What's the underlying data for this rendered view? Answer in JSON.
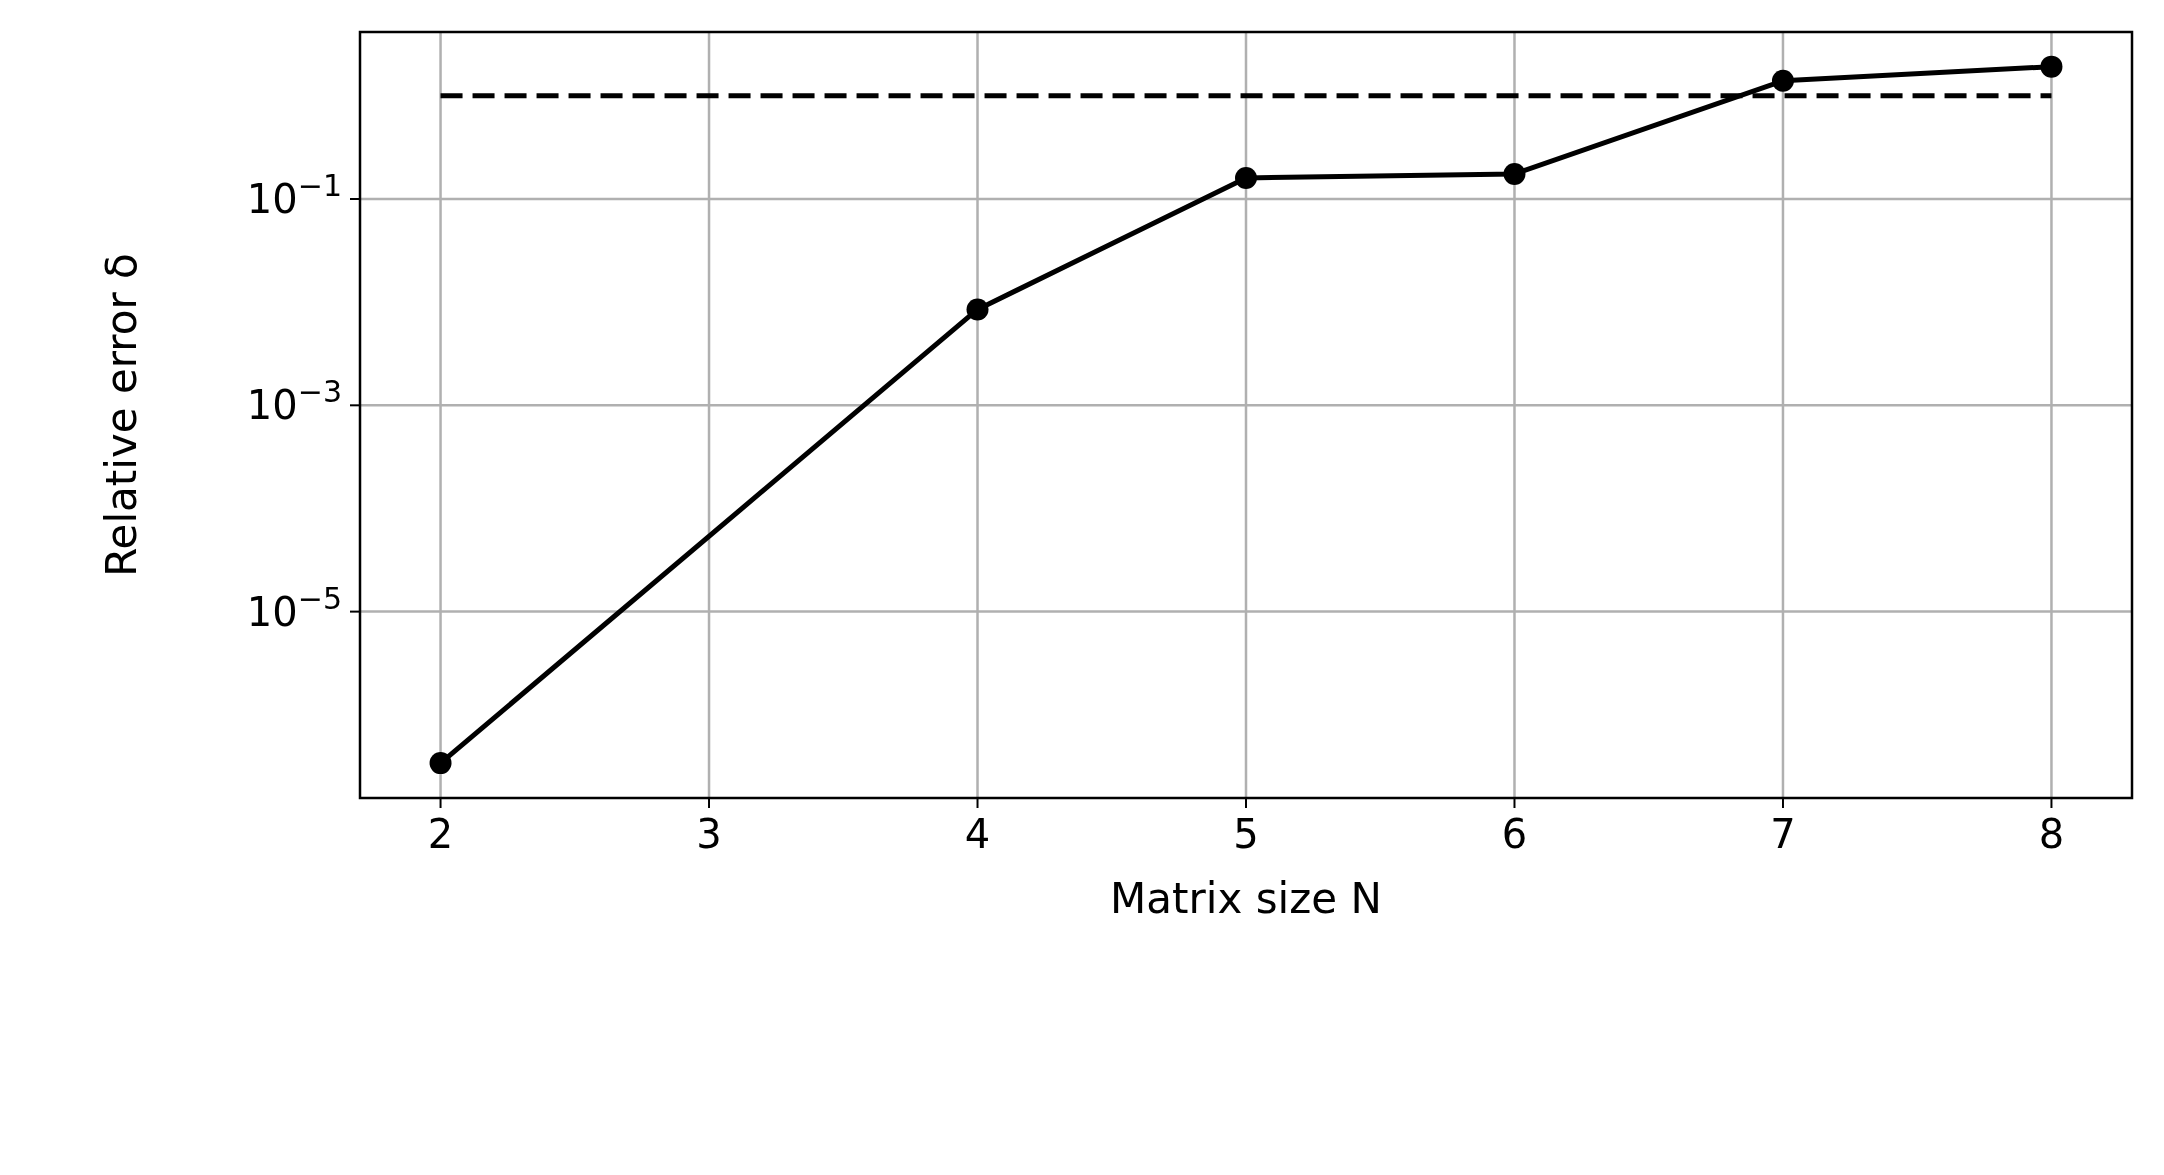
{
  "chart_data": {
    "type": "line",
    "xlabel": "Matrix size N",
    "ylabel": "Relative error δ",
    "log": "y",
    "grid": true,
    "marker": "circle",
    "line_style": "solid",
    "xlim": [
      1.7,
      8.3
    ],
    "xticks": [
      2,
      3,
      4,
      5,
      6,
      7,
      8
    ],
    "ylim": [
      1.56e-07,
      4.16
    ],
    "yticks": [
      {
        "value": 0.1,
        "label": "10$^{−1}$"
      },
      {
        "value": 0.001,
        "label": "10$^{−3}$"
      },
      {
        "value": 1e-05,
        "label": "10$^{−5}$"
      }
    ],
    "series": [
      {
        "color": "#000000",
        "x": [
          2,
          4,
          5,
          6,
          7,
          8
        ],
        "values": [
          3.4e-07,
          0.0085,
          0.16,
          0.175,
          1.4,
          1.92
        ]
      },
      {
        "color": "#000000",
        "x": [
          2,
          8
        ],
        "values": [
          1,
          1
        ],
        "line_style": "dashed",
        "marker": "none"
      }
    ]
  }
}
